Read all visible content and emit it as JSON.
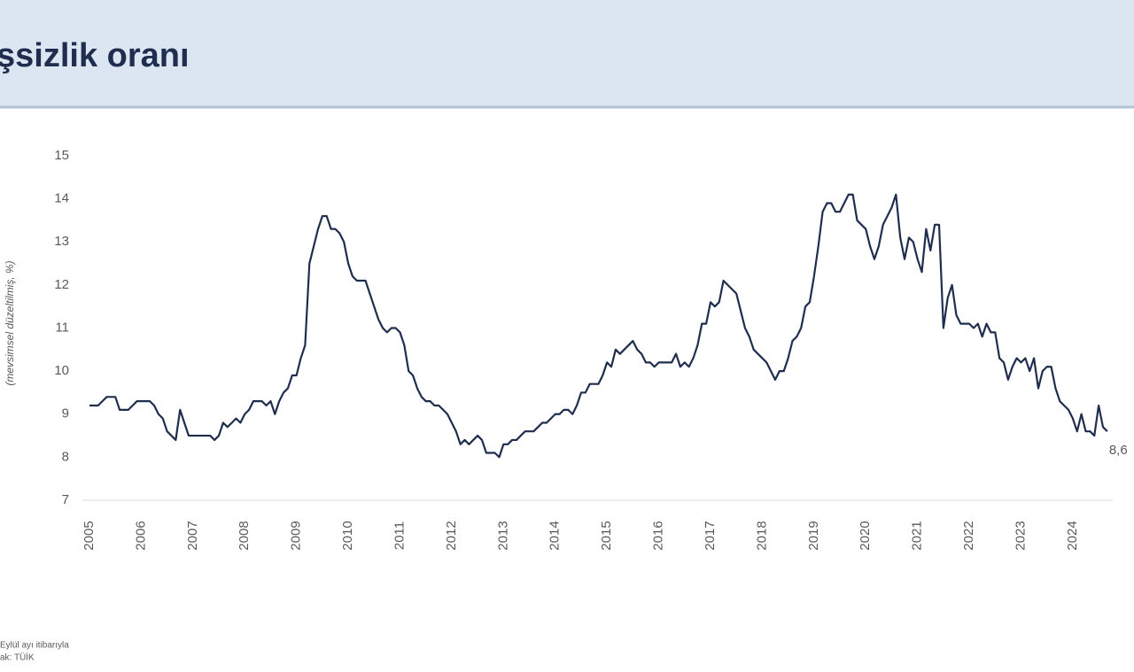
{
  "chart_data": {
    "type": "line",
    "title": "şsizlik oranı",
    "y_label": "(mevsimsel düzeltilmiş, %)",
    "notes": [
      "Eylül ayı itibarıyla",
      "ak: TÜİK"
    ],
    "color": "#1f2d4e",
    "ylim": [
      7,
      15
    ],
    "yticks": [
      7,
      8,
      9,
      10,
      11,
      12,
      13,
      14,
      15
    ],
    "grid": false,
    "categories": [
      "2005",
      null,
      null,
      null,
      null,
      null,
      null,
      null,
      null,
      null,
      null,
      null,
      "2006",
      null,
      null,
      null,
      null,
      null,
      null,
      null,
      null,
      null,
      null,
      null,
      "2007",
      null,
      null,
      null,
      null,
      null,
      null,
      null,
      null,
      null,
      null,
      null,
      "2008",
      null,
      null,
      null,
      null,
      null,
      null,
      null,
      null,
      null,
      null,
      null,
      "2009",
      null,
      null,
      null,
      null,
      null,
      null,
      null,
      null,
      null,
      null,
      null,
      "2010",
      null,
      null,
      null,
      null,
      null,
      null,
      null,
      null,
      null,
      null,
      null,
      "2011",
      null,
      null,
      null,
      null,
      null,
      null,
      null,
      null,
      null,
      null,
      null,
      "2012",
      null,
      null,
      null,
      null,
      null,
      null,
      null,
      null,
      null,
      null,
      null,
      "2013",
      null,
      null,
      null,
      null,
      null,
      null,
      null,
      null,
      null,
      null,
      null,
      "2014",
      null,
      null,
      null,
      null,
      null,
      null,
      null,
      null,
      null,
      null,
      null,
      "2015",
      null,
      null,
      null,
      null,
      null,
      null,
      null,
      null,
      null,
      null,
      null,
      "2016",
      null,
      null,
      null,
      null,
      null,
      null,
      null,
      null,
      null,
      null,
      null,
      "2017",
      null,
      null,
      null,
      null,
      null,
      null,
      null,
      null,
      null,
      null,
      null,
      "2018",
      null,
      null,
      null,
      null,
      null,
      null,
      null,
      null,
      null,
      null,
      null,
      "2019",
      null,
      null,
      null,
      null,
      null,
      null,
      null,
      null,
      null,
      null,
      null,
      "2020",
      null,
      null,
      null,
      null,
      null,
      null,
      null,
      null,
      null,
      null,
      null,
      "2021",
      null,
      null,
      null,
      null,
      null,
      null,
      null,
      null,
      null,
      null,
      null,
      "2022",
      null,
      null,
      null,
      null,
      null,
      null,
      null,
      null,
      null,
      null,
      null,
      "2023",
      null,
      null,
      null,
      null,
      null,
      null,
      null,
      null,
      null,
      null,
      null,
      "2024",
      null,
      null,
      null,
      null,
      null,
      null,
      null,
      null
    ],
    "values": [
      9.2,
      9.2,
      9.2,
      9.3,
      9.4,
      9.4,
      9.4,
      9.1,
      9.1,
      9.1,
      9.2,
      9.3,
      9.3,
      9.3,
      9.3,
      9.2,
      9.0,
      8.9,
      8.6,
      8.5,
      8.4,
      9.1,
      8.8,
      8.5,
      8.5,
      8.5,
      8.5,
      8.5,
      8.5,
      8.4,
      8.5,
      8.8,
      8.7,
      8.8,
      8.9,
      8.8,
      9.0,
      9.1,
      9.3,
      9.3,
      9.3,
      9.2,
      9.3,
      9.0,
      9.3,
      9.5,
      9.6,
      9.9,
      9.9,
      10.3,
      10.6,
      12.5,
      12.9,
      13.3,
      13.6,
      13.6,
      13.3,
      13.3,
      13.2,
      13.0,
      12.5,
      12.2,
      12.1,
      12.1,
      12.1,
      11.8,
      11.5,
      11.2,
      11.0,
      10.9,
      11.0,
      11.0,
      10.9,
      10.6,
      10.0,
      9.9,
      9.6,
      9.4,
      9.3,
      9.3,
      9.2,
      9.2,
      9.1,
      9.0,
      8.8,
      8.6,
      8.3,
      8.4,
      8.3,
      8.4,
      8.5,
      8.4,
      8.1,
      8.1,
      8.1,
      8.0,
      8.3,
      8.3,
      8.4,
      8.4,
      8.5,
      8.6,
      8.6,
      8.6,
      8.7,
      8.8,
      8.8,
      8.9,
      9.0,
      9.0,
      9.1,
      9.1,
      9.0,
      9.2,
      9.5,
      9.5,
      9.7,
      9.7,
      9.7,
      9.9,
      10.2,
      10.1,
      10.5,
      10.4,
      10.5,
      10.6,
      10.7,
      10.5,
      10.4,
      10.2,
      10.2,
      10.1,
      10.2,
      10.2,
      10.2,
      10.2,
      10.4,
      10.1,
      10.2,
      10.1,
      10.3,
      10.6,
      11.1,
      11.1,
      11.6,
      11.5,
      11.6,
      12.1,
      12.0,
      11.9,
      11.8,
      11.4,
      11.0,
      10.8,
      10.5,
      10.4,
      10.3,
      10.2,
      10.0,
      9.8,
      10.0,
      10.0,
      10.3,
      10.7,
      10.8,
      11.0,
      11.5,
      11.6,
      12.2,
      12.9,
      13.7,
      13.9,
      13.9,
      13.7,
      13.7,
      13.9,
      14.1,
      14.1,
      13.5,
      13.4,
      13.3,
      12.9,
      12.6,
      12.9,
      13.4,
      13.6,
      13.8,
      14.1,
      13.1,
      12.6,
      13.1,
      13.0,
      12.6,
      12.3,
      13.3,
      12.8,
      13.4,
      13.4,
      11.0,
      11.7,
      12.0,
      11.3,
      11.1,
      11.1,
      11.1,
      11.0,
      11.1,
      10.8,
      11.1,
      10.9,
      10.9,
      10.3,
      10.2,
      9.8,
      10.1,
      10.3,
      10.2,
      10.3,
      10.0,
      10.3,
      9.6,
      10.0,
      10.1,
      10.1,
      9.6,
      9.3,
      9.2,
      9.1,
      8.9,
      8.6,
      9.0,
      8.6,
      8.6,
      8.5,
      9.2,
      8.7,
      8.6
    ],
    "value_labels": [
      null,
      null,
      null,
      null,
      null,
      null,
      null,
      null,
      null,
      null,
      null,
      null,
      null,
      null,
      null,
      null,
      null,
      null,
      null,
      null,
      null,
      null,
      null,
      null,
      null,
      null,
      null,
      null,
      null,
      null,
      null,
      null,
      null,
      null,
      null,
      null,
      null,
      null,
      null,
      null,
      null,
      null,
      null,
      null,
      null,
      null,
      null,
      null,
      null,
      null,
      null,
      null,
      null,
      null,
      null,
      null,
      null,
      null,
      null,
      null,
      null,
      null,
      null,
      null,
      null,
      null,
      null,
      null,
      null,
      null,
      null,
      null,
      null,
      null,
      null,
      null,
      null,
      null,
      null,
      null,
      null,
      null,
      null,
      null,
      null,
      null,
      null,
      null,
      null,
      null,
      null,
      null,
      null,
      null,
      null,
      null,
      null,
      null,
      null,
      null,
      null,
      null,
      null,
      null,
      null,
      null,
      null,
      null,
      null,
      null,
      null,
      null,
      null,
      null,
      null,
      null,
      null,
      null,
      null,
      null,
      null,
      null,
      null,
      null,
      null,
      null,
      null,
      null,
      null,
      null,
      null,
      null,
      null,
      null,
      null,
      null,
      null,
      null,
      null,
      null,
      null,
      null,
      null,
      null,
      null,
      null,
      null,
      null,
      null,
      null,
      null,
      null,
      null,
      null,
      null,
      null,
      null,
      null,
      null,
      null,
      null,
      null,
      null,
      null,
      null,
      null,
      null,
      null,
      null,
      null,
      null,
      null,
      null,
      null,
      null,
      null,
      null,
      null,
      null,
      null,
      null,
      null,
      null,
      null,
      null,
      null,
      null,
      null,
      null,
      null,
      null,
      null,
      null,
      null,
      null,
      null,
      null,
      null,
      null,
      null,
      null,
      null,
      null,
      null,
      null,
      null,
      null,
      null,
      null,
      null,
      null,
      null,
      null,
      null,
      null,
      null,
      null,
      null,
      null,
      null,
      null,
      null,
      null,
      null,
      null,
      null,
      null,
      null,
      null,
      null,
      null,
      null,
      null,
      null,
      null,
      null,
      "8,6"
    ]
  }
}
